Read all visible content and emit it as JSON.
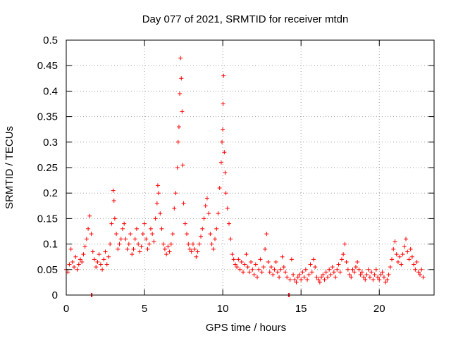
{
  "chart_data": {
    "type": "scatter",
    "title": "Day 077 of 2021, SRMTID for receiver mtdn",
    "xlabel": "GPS time / hours",
    "ylabel": "SRMTID / TECUs",
    "xlim": [
      0,
      23.5
    ],
    "ylim": [
      0,
      0.5
    ],
    "xticks": [
      0,
      5,
      10,
      15,
      20
    ],
    "yticks": [
      0,
      0.05,
      0.1,
      0.15,
      0.2,
      0.25,
      0.3,
      0.35,
      0.4,
      0.45,
      0.5
    ],
    "xtick_labels": [
      "0",
      "5",
      "10",
      "15",
      "20"
    ],
    "ytick_labels": [
      "0",
      "0.05",
      "0.1",
      "0.15",
      "0.2",
      "0.25",
      "0.3",
      "0.35",
      "0.4",
      "0.45",
      "0.5"
    ],
    "grid": true,
    "marker": "+",
    "color": "#ff0000",
    "series": [
      {
        "name": "SRMTID",
        "points": [
          [
            0.0,
            0.05
          ],
          [
            0.1,
            0.045
          ],
          [
            0.2,
            0.06
          ],
          [
            0.3,
            0.09
          ],
          [
            0.4,
            0.065
          ],
          [
            0.5,
            0.055
          ],
          [
            0.6,
            0.075
          ],
          [
            0.7,
            0.05
          ],
          [
            0.8,
            0.06
          ],
          [
            0.9,
            0.07
          ],
          [
            1.0,
            0.065
          ],
          [
            1.1,
            0.08
          ],
          [
            1.2,
            0.095
          ],
          [
            1.3,
            0.11
          ],
          [
            1.4,
            0.13
          ],
          [
            1.5,
            0.155
          ],
          [
            1.6,
            0.12
          ],
          [
            1.7,
            0.085
          ],
          [
            1.6,
            0.0
          ],
          [
            1.65,
            0.0
          ],
          [
            1.8,
            0.07
          ],
          [
            1.9,
            0.055
          ],
          [
            2.0,
            0.065
          ],
          [
            2.1,
            0.08
          ],
          [
            2.2,
            0.06
          ],
          [
            2.3,
            0.05
          ],
          [
            2.4,
            0.07
          ],
          [
            2.5,
            0.085
          ],
          [
            2.6,
            0.06
          ],
          [
            2.7,
            0.075
          ],
          [
            2.8,
            0.1
          ],
          [
            2.9,
            0.14
          ],
          [
            3.0,
            0.205
          ],
          [
            3.05,
            0.185
          ],
          [
            3.1,
            0.15
          ],
          [
            3.2,
            0.12
          ],
          [
            3.3,
            0.09
          ],
          [
            3.4,
            0.1
          ],
          [
            3.5,
            0.11
          ],
          [
            3.6,
            0.13
          ],
          [
            3.7,
            0.14
          ],
          [
            3.8,
            0.11
          ],
          [
            3.9,
            0.09
          ],
          [
            4.0,
            0.1
          ],
          [
            4.1,
            0.12
          ],
          [
            4.2,
            0.08
          ],
          [
            4.3,
            0.09
          ],
          [
            4.4,
            0.11
          ],
          [
            4.5,
            0.13
          ],
          [
            4.6,
            0.1
          ],
          [
            4.7,
            0.085
          ],
          [
            4.8,
            0.095
          ],
          [
            4.9,
            0.12
          ],
          [
            5.0,
            0.14
          ],
          [
            5.1,
            0.11
          ],
          [
            5.2,
            0.09
          ],
          [
            5.3,
            0.1
          ],
          [
            5.4,
            0.13
          ],
          [
            5.5,
            0.12
          ],
          [
            5.6,
            0.105
          ],
          [
            5.7,
            0.15
          ],
          [
            5.8,
            0.18
          ],
          [
            5.85,
            0.215
          ],
          [
            5.9,
            0.2
          ],
          [
            6.0,
            0.16
          ],
          [
            6.1,
            0.13
          ],
          [
            6.2,
            0.1
          ],
          [
            6.3,
            0.09
          ],
          [
            6.4,
            0.08
          ],
          [
            6.5,
            0.095
          ],
          [
            6.6,
            0.085
          ],
          [
            6.7,
            0.1
          ],
          [
            6.8,
            0.12
          ],
          [
            6.9,
            0.17
          ],
          [
            7.0,
            0.2
          ],
          [
            7.1,
            0.25
          ],
          [
            7.15,
            0.3
          ],
          [
            7.2,
            0.33
          ],
          [
            7.25,
            0.395
          ],
          [
            7.3,
            0.465
          ],
          [
            7.35,
            0.425
          ],
          [
            7.4,
            0.36
          ],
          [
            7.45,
            0.255
          ],
          [
            7.5,
            0.18
          ],
          [
            7.6,
            0.14
          ],
          [
            7.7,
            0.12
          ],
          [
            7.8,
            0.1
          ],
          [
            7.9,
            0.09
          ],
          [
            8.0,
            0.085
          ],
          [
            8.1,
            0.1
          ],
          [
            8.2,
            0.09
          ],
          [
            8.3,
            0.075
          ],
          [
            8.4,
            0.085
          ],
          [
            8.5,
            0.1
          ],
          [
            8.6,
            0.115
          ],
          [
            8.7,
            0.13
          ],
          [
            8.8,
            0.15
          ],
          [
            8.9,
            0.175
          ],
          [
            9.0,
            0.19
          ],
          [
            9.1,
            0.16
          ],
          [
            9.2,
            0.12
          ],
          [
            9.3,
            0.1
          ],
          [
            9.4,
            0.09
          ],
          [
            9.5,
            0.11
          ],
          [
            9.6,
            0.13
          ],
          [
            9.7,
            0.16
          ],
          [
            9.8,
            0.21
          ],
          [
            9.9,
            0.26
          ],
          [
            9.95,
            0.3
          ],
          [
            10.0,
            0.325
          ],
          [
            10.02,
            0.375
          ],
          [
            10.05,
            0.43
          ],
          [
            10.1,
            0.28
          ],
          [
            10.15,
            0.24
          ],
          [
            10.2,
            0.2
          ],
          [
            10.3,
            0.17
          ],
          [
            10.4,
            0.14
          ],
          [
            10.5,
            0.11
          ],
          [
            10.6,
            0.08
          ],
          [
            10.7,
            0.07
          ],
          [
            10.8,
            0.06
          ],
          [
            10.9,
            0.055
          ],
          [
            11.0,
            0.07
          ],
          [
            11.1,
            0.05
          ],
          [
            11.2,
            0.065
          ],
          [
            11.3,
            0.045
          ],
          [
            11.4,
            0.06
          ],
          [
            11.5,
            0.08
          ],
          [
            11.6,
            0.055
          ],
          [
            11.7,
            0.045
          ],
          [
            11.8,
            0.065
          ],
          [
            11.9,
            0.05
          ],
          [
            12.0,
            0.04
          ],
          [
            12.1,
            0.06
          ],
          [
            12.2,
            0.035
          ],
          [
            12.3,
            0.05
          ],
          [
            12.4,
            0.07
          ],
          [
            12.5,
            0.045
          ],
          [
            12.6,
            0.055
          ],
          [
            12.7,
            0.09
          ],
          [
            12.8,
            0.12
          ],
          [
            12.9,
            0.065
          ],
          [
            13.0,
            0.045
          ],
          [
            13.1,
            0.055
          ],
          [
            13.2,
            0.04
          ],
          [
            13.3,
            0.05
          ],
          [
            13.4,
            0.065
          ],
          [
            13.5,
            0.045
          ],
          [
            13.6,
            0.035
          ],
          [
            13.7,
            0.05
          ],
          [
            13.8,
            0.075
          ],
          [
            13.9,
            0.055
          ],
          [
            14.0,
            0.045
          ],
          [
            14.1,
            0.035
          ],
          [
            14.2,
            0.0
          ],
          [
            14.25,
            0.0
          ],
          [
            14.3,
            0.03
          ],
          [
            14.4,
            0.07
          ],
          [
            14.5,
            0.04
          ],
          [
            14.6,
            0.03
          ],
          [
            14.7,
            0.025
          ],
          [
            14.8,
            0.035
          ],
          [
            14.9,
            0.04
          ],
          [
            15.0,
            0.03
          ],
          [
            15.1,
            0.045
          ],
          [
            15.2,
            0.035
          ],
          [
            15.3,
            0.05
          ],
          [
            15.4,
            0.03
          ],
          [
            15.5,
            0.04
          ],
          [
            15.6,
            0.06
          ],
          [
            15.7,
            0.045
          ],
          [
            15.8,
            0.07
          ],
          [
            15.9,
            0.055
          ],
          [
            16.0,
            0.035
          ],
          [
            16.1,
            0.03
          ],
          [
            16.2,
            0.025
          ],
          [
            16.3,
            0.035
          ],
          [
            16.4,
            0.04
          ],
          [
            16.5,
            0.03
          ],
          [
            16.6,
            0.045
          ],
          [
            16.7,
            0.035
          ],
          [
            16.8,
            0.05
          ],
          [
            16.9,
            0.04
          ],
          [
            17.0,
            0.055
          ],
          [
            17.1,
            0.045
          ],
          [
            17.2,
            0.035
          ],
          [
            17.3,
            0.05
          ],
          [
            17.4,
            0.06
          ],
          [
            17.5,
            0.045
          ],
          [
            17.6,
            0.07
          ],
          [
            17.7,
            0.08
          ],
          [
            17.8,
            0.1
          ],
          [
            17.9,
            0.065
          ],
          [
            18.0,
            0.05
          ],
          [
            18.1,
            0.04
          ],
          [
            18.2,
            0.035
          ],
          [
            18.3,
            0.05
          ],
          [
            18.4,
            0.045
          ],
          [
            18.5,
            0.055
          ],
          [
            18.6,
            0.065
          ],
          [
            18.7,
            0.05
          ],
          [
            18.8,
            0.04
          ],
          [
            18.9,
            0.045
          ],
          [
            19.0,
            0.035
          ],
          [
            19.1,
            0.03
          ],
          [
            19.2,
            0.04
          ],
          [
            19.3,
            0.05
          ],
          [
            19.4,
            0.035
          ],
          [
            19.5,
            0.045
          ],
          [
            19.6,
            0.03
          ],
          [
            19.7,
            0.04
          ],
          [
            19.8,
            0.05
          ],
          [
            19.9,
            0.035
          ],
          [
            20.0,
            0.03
          ],
          [
            20.1,
            0.04
          ],
          [
            20.2,
            0.045
          ],
          [
            20.3,
            0.035
          ],
          [
            20.4,
            0.025
          ],
          [
            20.5,
            0.03
          ],
          [
            20.6,
            0.04
          ],
          [
            20.7,
            0.055
          ],
          [
            20.8,
            0.07
          ],
          [
            20.9,
            0.09
          ],
          [
            21.0,
            0.105
          ],
          [
            21.1,
            0.08
          ],
          [
            21.2,
            0.065
          ],
          [
            21.3,
            0.075
          ],
          [
            21.4,
            0.06
          ],
          [
            21.5,
            0.08
          ],
          [
            21.6,
            0.095
          ],
          [
            21.7,
            0.11
          ],
          [
            21.8,
            0.085
          ],
          [
            21.9,
            0.07
          ],
          [
            22.0,
            0.09
          ],
          [
            22.1,
            0.075
          ],
          [
            22.2,
            0.06
          ],
          [
            22.3,
            0.05
          ],
          [
            22.4,
            0.065
          ],
          [
            22.5,
            0.045
          ],
          [
            22.6,
            0.04
          ],
          [
            22.7,
            0.05
          ],
          [
            22.8,
            0.035
          ]
        ]
      }
    ]
  }
}
